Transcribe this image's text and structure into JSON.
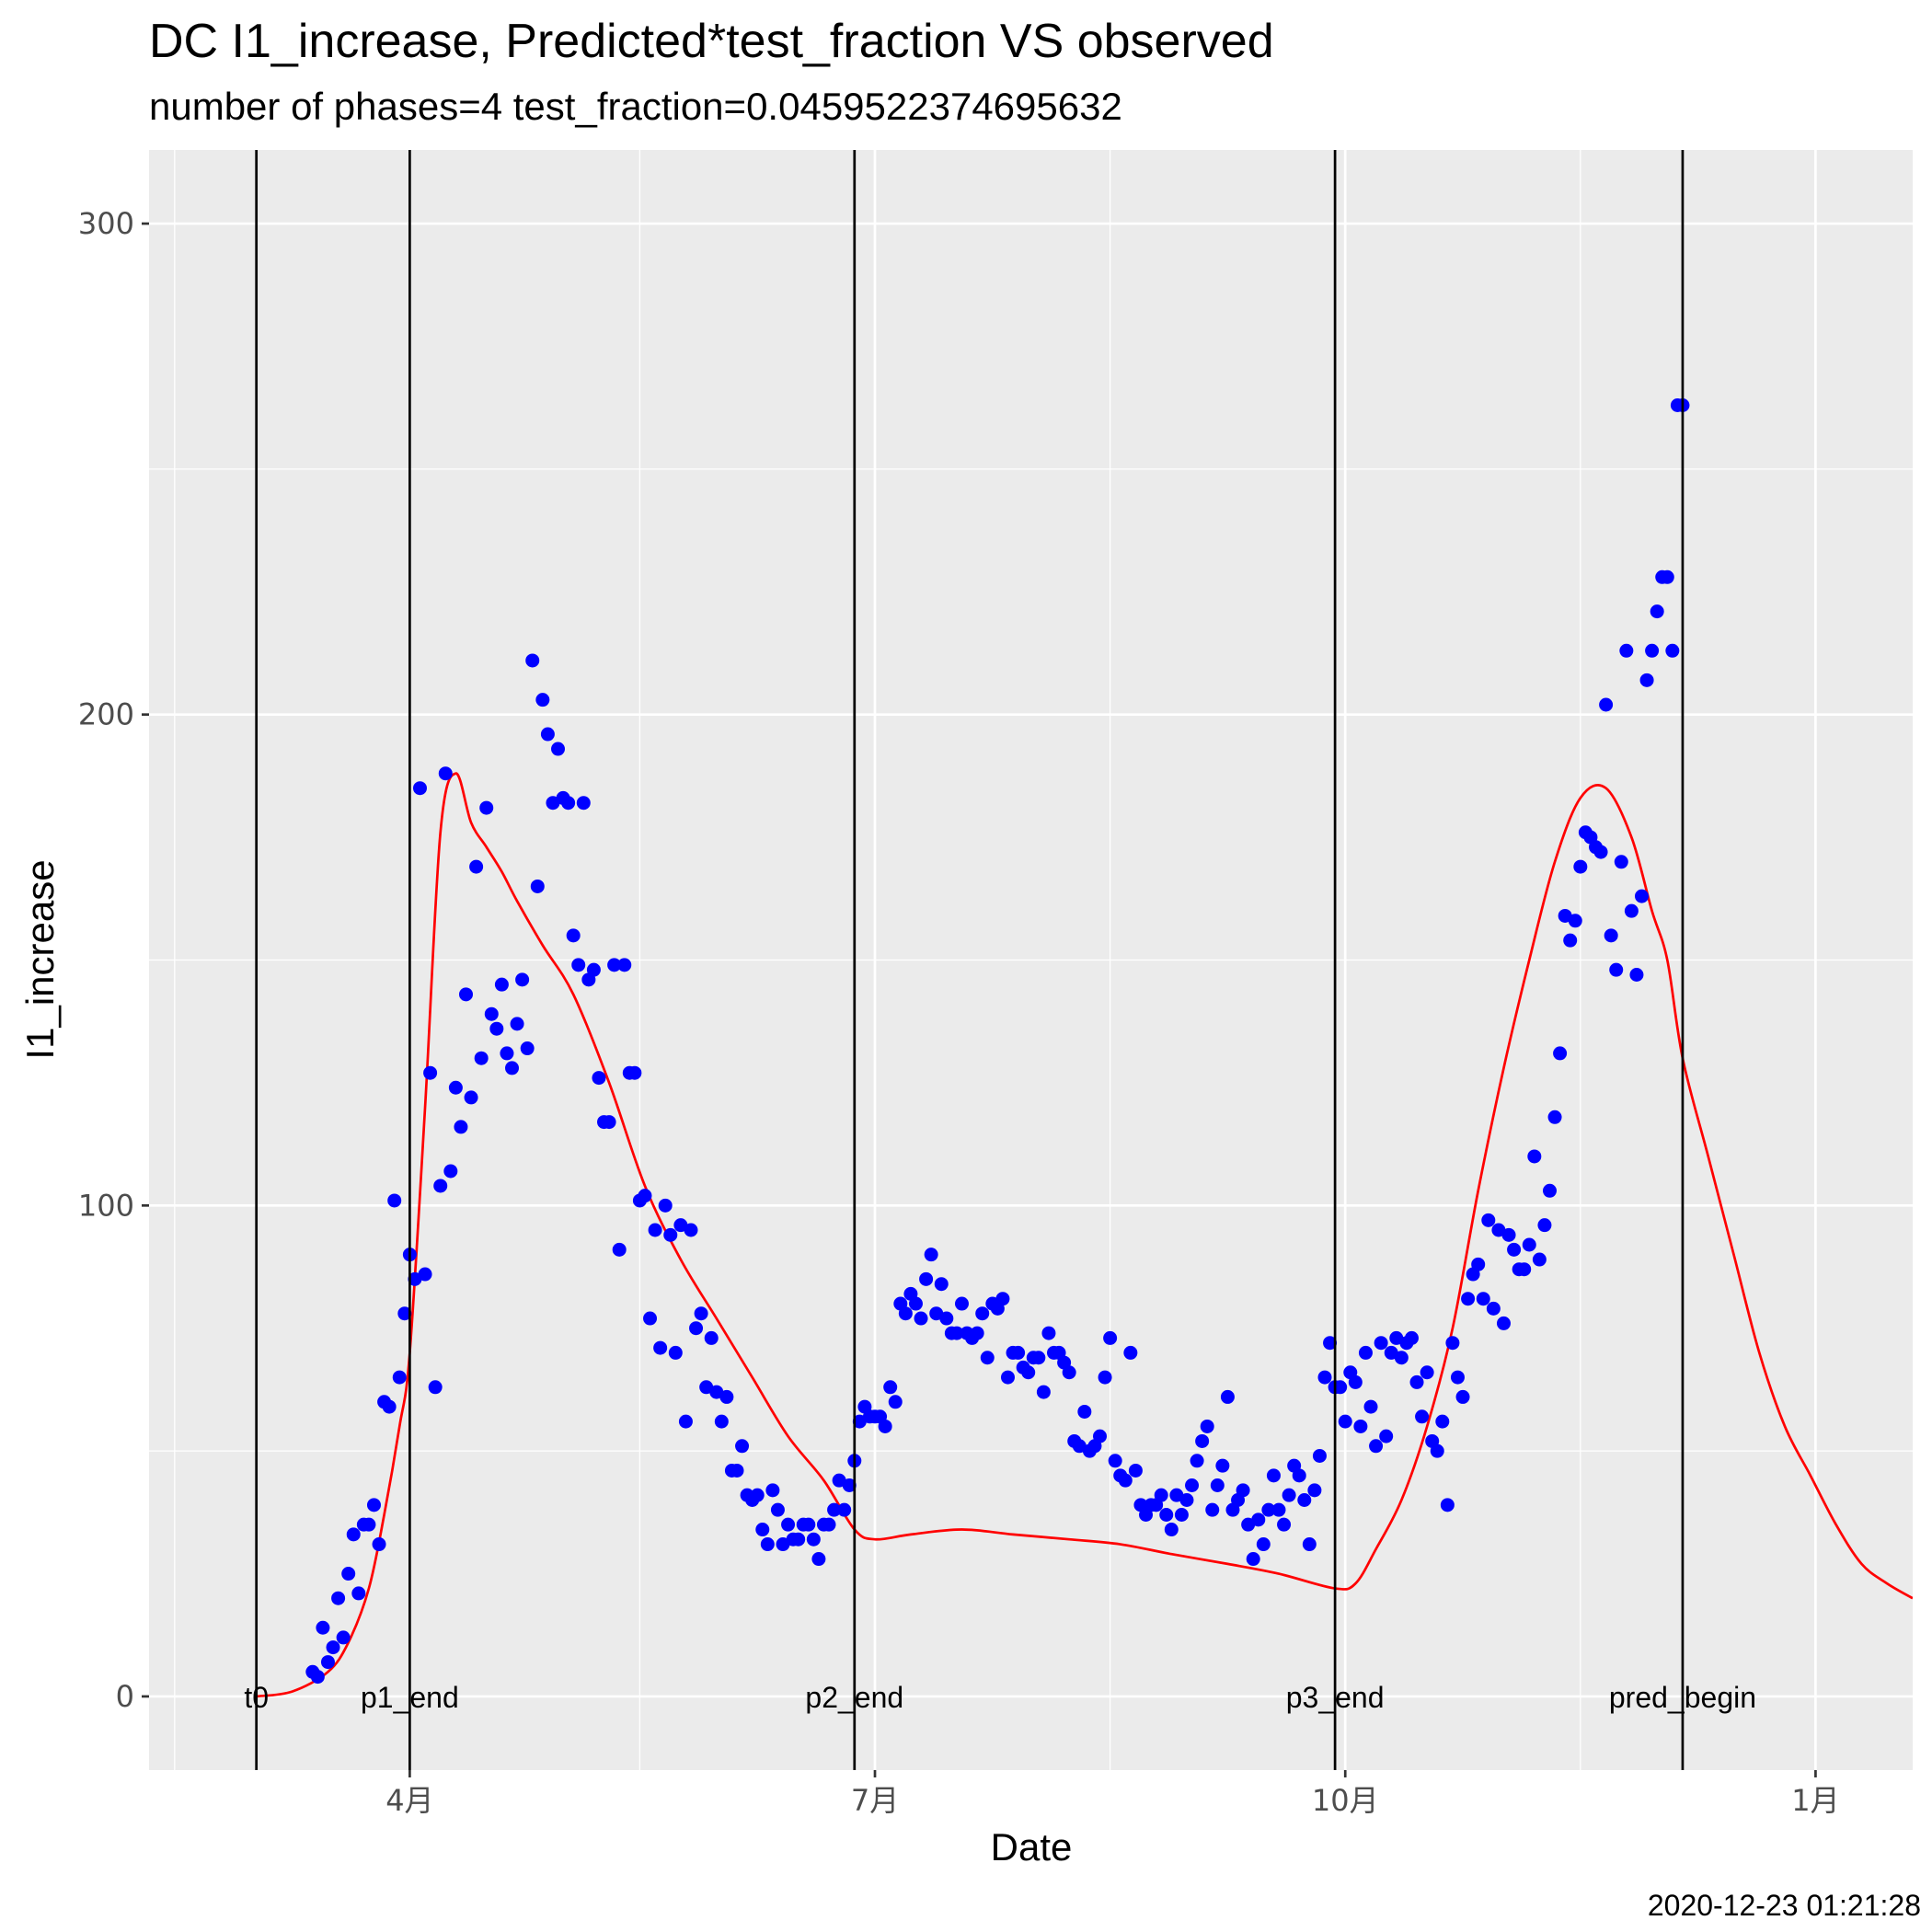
{
  "chart_data": {
    "type": "scatter",
    "title": "DC I1_increase, Predicted*test_fraction VS observed",
    "subtitle": "number of phases=4   test_fraction=0.0459522374695632",
    "xlabel": "Date",
    "ylabel": "I1_increase",
    "caption": "2020-12-23 01:21:28",
    "x_is_date": true,
    "xlim": [
      "2020-02-10",
      "2021-01-20"
    ],
    "ylim": [
      -15,
      315
    ],
    "grid": true,
    "y_ticks": [
      0,
      100,
      200,
      300
    ],
    "y_tick_labels": [
      "0",
      "100",
      "200",
      "300"
    ],
    "x_ticks": [
      "2020-04-01",
      "2020-07-01",
      "2020-10-01",
      "2021-01-01"
    ],
    "x_tick_labels": [
      "4月",
      "7月",
      "10月",
      "1月"
    ],
    "x_minor_ticks": [
      "2020-02-15",
      "2020-05-16",
      "2020-08-16",
      "2020-11-16"
    ],
    "vlines": [
      {
        "date": "2020-03-02",
        "label": "t0"
      },
      {
        "date": "2020-04-01",
        "label": "p1_end"
      },
      {
        "date": "2020-06-27",
        "label": "p2_end"
      },
      {
        "date": "2020-09-29",
        "label": "p3_end"
      },
      {
        "date": "2020-12-06",
        "label": "pred_begin"
      }
    ],
    "colors": {
      "observed": "#0000ff",
      "predicted": "#ff0000",
      "panel": "#ebebeb",
      "grid": "#ffffff",
      "vline": "#000000"
    },
    "series": [
      {
        "kind": "points",
        "x": [
          "2020-03-13",
          "2020-03-14",
          "2020-03-15",
          "2020-03-16",
          "2020-03-17",
          "2020-03-18",
          "2020-03-19",
          "2020-03-20",
          "2020-03-21",
          "2020-03-22",
          "2020-03-23",
          "2020-03-24",
          "2020-03-25",
          "2020-03-26",
          "2020-03-27",
          "2020-03-28",
          "2020-03-29",
          "2020-03-30",
          "2020-03-31",
          "2020-04-01",
          "2020-04-02",
          "2020-04-03",
          "2020-04-04",
          "2020-04-05",
          "2020-04-06",
          "2020-04-07",
          "2020-04-08",
          "2020-04-09",
          "2020-04-10",
          "2020-04-11",
          "2020-04-12",
          "2020-04-13",
          "2020-04-14",
          "2020-04-15",
          "2020-04-16",
          "2020-04-17",
          "2020-04-18",
          "2020-04-19",
          "2020-04-20",
          "2020-04-21",
          "2020-04-22",
          "2020-04-23",
          "2020-04-24",
          "2020-04-25",
          "2020-04-26",
          "2020-04-27",
          "2020-04-28",
          "2020-04-29",
          "2020-04-30",
          "2020-05-01",
          "2020-05-02",
          "2020-05-03",
          "2020-05-04",
          "2020-05-05",
          "2020-05-06",
          "2020-05-07",
          "2020-05-08",
          "2020-05-09",
          "2020-05-10",
          "2020-05-11",
          "2020-05-12",
          "2020-05-13",
          "2020-05-14",
          "2020-05-15",
          "2020-05-16",
          "2020-05-17",
          "2020-05-18",
          "2020-05-19",
          "2020-05-20",
          "2020-05-21",
          "2020-05-22",
          "2020-05-23",
          "2020-05-24",
          "2020-05-25",
          "2020-05-26",
          "2020-05-27",
          "2020-05-28",
          "2020-05-29",
          "2020-05-30",
          "2020-05-31",
          "2020-06-01",
          "2020-06-02",
          "2020-06-03",
          "2020-06-04",
          "2020-06-05",
          "2020-06-06",
          "2020-06-07",
          "2020-06-08",
          "2020-06-09",
          "2020-06-10",
          "2020-06-11",
          "2020-06-12",
          "2020-06-13",
          "2020-06-14",
          "2020-06-15",
          "2020-06-16",
          "2020-06-17",
          "2020-06-18",
          "2020-06-19",
          "2020-06-20",
          "2020-06-21",
          "2020-06-22",
          "2020-06-23",
          "2020-06-24",
          "2020-06-25",
          "2020-06-26",
          "2020-06-27",
          "2020-06-28",
          "2020-06-29",
          "2020-06-30",
          "2020-07-01",
          "2020-07-02",
          "2020-07-03",
          "2020-07-04",
          "2020-07-05",
          "2020-07-06",
          "2020-07-07",
          "2020-07-08",
          "2020-07-09",
          "2020-07-10",
          "2020-07-11",
          "2020-07-12",
          "2020-07-13",
          "2020-07-14",
          "2020-07-15",
          "2020-07-16",
          "2020-07-17",
          "2020-07-18",
          "2020-07-19",
          "2020-07-20",
          "2020-07-21",
          "2020-07-22",
          "2020-07-23",
          "2020-07-24",
          "2020-07-25",
          "2020-07-26",
          "2020-07-27",
          "2020-07-28",
          "2020-07-29",
          "2020-07-30",
          "2020-07-31",
          "2020-08-01",
          "2020-08-02",
          "2020-08-03",
          "2020-08-04",
          "2020-08-05",
          "2020-08-06",
          "2020-08-07",
          "2020-08-08",
          "2020-08-09",
          "2020-08-10",
          "2020-08-11",
          "2020-08-12",
          "2020-08-13",
          "2020-08-14",
          "2020-08-15",
          "2020-08-16",
          "2020-08-17",
          "2020-08-18",
          "2020-08-19",
          "2020-08-20",
          "2020-08-21",
          "2020-08-22",
          "2020-08-23",
          "2020-08-24",
          "2020-08-25",
          "2020-08-26",
          "2020-08-27",
          "2020-08-28",
          "2020-08-29",
          "2020-08-30",
          "2020-08-31",
          "2020-09-01",
          "2020-09-02",
          "2020-09-03",
          "2020-09-04",
          "2020-09-05",
          "2020-09-06",
          "2020-09-07",
          "2020-09-08",
          "2020-09-09",
          "2020-09-10",
          "2020-09-11",
          "2020-09-12",
          "2020-09-13",
          "2020-09-14",
          "2020-09-15",
          "2020-09-16",
          "2020-09-17",
          "2020-09-18",
          "2020-09-19",
          "2020-09-20",
          "2020-09-21",
          "2020-09-22",
          "2020-09-23",
          "2020-09-24",
          "2020-09-25",
          "2020-09-26",
          "2020-09-27",
          "2020-09-28",
          "2020-09-29",
          "2020-09-30",
          "2020-10-01",
          "2020-10-02",
          "2020-10-03",
          "2020-10-04",
          "2020-10-05",
          "2020-10-06",
          "2020-10-07",
          "2020-10-08",
          "2020-10-09",
          "2020-10-10",
          "2020-10-11",
          "2020-10-12",
          "2020-10-13",
          "2020-10-14",
          "2020-10-15",
          "2020-10-16",
          "2020-10-17",
          "2020-10-18",
          "2020-10-19",
          "2020-10-20",
          "2020-10-21",
          "2020-10-22",
          "2020-10-23",
          "2020-10-24",
          "2020-10-25",
          "2020-10-26",
          "2020-10-27",
          "2020-10-28",
          "2020-10-29",
          "2020-10-30",
          "2020-10-31",
          "2020-11-01",
          "2020-11-02",
          "2020-11-03",
          "2020-11-04",
          "2020-11-05",
          "2020-11-06",
          "2020-11-07",
          "2020-11-08",
          "2020-11-09",
          "2020-11-10",
          "2020-11-11",
          "2020-11-12",
          "2020-11-13",
          "2020-11-14",
          "2020-11-15",
          "2020-11-16",
          "2020-11-17",
          "2020-11-18",
          "2020-11-19",
          "2020-11-20",
          "2020-11-21",
          "2020-11-22",
          "2020-11-23",
          "2020-11-24",
          "2020-11-25",
          "2020-11-26",
          "2020-11-27",
          "2020-11-28",
          "2020-11-29",
          "2020-11-30",
          "2020-12-01",
          "2020-12-02",
          "2020-12-03",
          "2020-12-04",
          "2020-12-05",
          "2020-12-06"
        ],
        "y": [
          5,
          4,
          14,
          7,
          10,
          20,
          12,
          25,
          33,
          21,
          35,
          35,
          39,
          31,
          60,
          59,
          101,
          65,
          78,
          90,
          85,
          185,
          86,
          127,
          63,
          104,
          188,
          107,
          124,
          116,
          143,
          122,
          169,
          130,
          181,
          139,
          136,
          145,
          131,
          128,
          137,
          146,
          132,
          211,
          165,
          203,
          196,
          182,
          193,
          183,
          182,
          155,
          149,
          182,
          146,
          148,
          126,
          117,
          117,
          149,
          91,
          149,
          127,
          127,
          101,
          102,
          77,
          95,
          71,
          100,
          94,
          70,
          96,
          56,
          95,
          75,
          78,
          63,
          73,
          62,
          56,
          61,
          46,
          46,
          51,
          41,
          40,
          41,
          34,
          31,
          42,
          38,
          31,
          35,
          32,
          32,
          35,
          35,
          32,
          28,
          35,
          35,
          38,
          44,
          38,
          43,
          48,
          56,
          59,
          57,
          57,
          57,
          55,
          63,
          60,
          80,
          78,
          82,
          80,
          77,
          85,
          90,
          78,
          84,
          77,
          74,
          74,
          80,
          74,
          73,
          74,
          78,
          69,
          80,
          79,
          81,
          65,
          70,
          70,
          67,
          66,
          69,
          69,
          62,
          74,
          70,
          70,
          68,
          66,
          52,
          51,
          58,
          50,
          51,
          53,
          65,
          73,
          48,
          45,
          44,
          70,
          46,
          39,
          37,
          39,
          39,
          41,
          37,
          34,
          41,
          37,
          40,
          43,
          48,
          52,
          55,
          38,
          43,
          47,
          61,
          38,
          40,
          42,
          35,
          28,
          36,
          31,
          38,
          45,
          38,
          35,
          41,
          47,
          45,
          40,
          31,
          42,
          49,
          65,
          72,
          63,
          63,
          56,
          66,
          64,
          55,
          70,
          59,
          51,
          72,
          53,
          70,
          73,
          69,
          72,
          73,
          64,
          57,
          66,
          52,
          50,
          56,
          39,
          72,
          65,
          61,
          81,
          86,
          88,
          81,
          97,
          79,
          95,
          76,
          94,
          91,
          87,
          87,
          92,
          110,
          89,
          96,
          103,
          118,
          131,
          159,
          154,
          158,
          169,
          176,
          175,
          173,
          172,
          202,
          155,
          148,
          170,
          213,
          160,
          147,
          163,
          207,
          213,
          221,
          228,
          228,
          213,
          263,
          263
        ]
      },
      {
        "kind": "line",
        "x": [
          "2020-03-02",
          "2020-03-09",
          "2020-03-16",
          "2020-03-20",
          "2020-03-24",
          "2020-03-27",
          "2020-03-30",
          "2020-04-01",
          "2020-04-04",
          "2020-04-07",
          "2020-04-10",
          "2020-04-13",
          "2020-04-16",
          "2020-04-19",
          "2020-04-22",
          "2020-04-27",
          "2020-05-03",
          "2020-05-10",
          "2020-05-17",
          "2020-05-24",
          "2020-05-31",
          "2020-06-07",
          "2020-06-14",
          "2020-06-21",
          "2020-06-27",
          "2020-07-01",
          "2020-07-08",
          "2020-07-18",
          "2020-07-28",
          "2020-08-08",
          "2020-08-18",
          "2020-08-28",
          "2020-09-08",
          "2020-09-18",
          "2020-09-29",
          "2020-10-03",
          "2020-10-07",
          "2020-10-12",
          "2020-10-17",
          "2020-10-22",
          "2020-10-27",
          "2020-11-01",
          "2020-11-06",
          "2020-11-11",
          "2020-11-16",
          "2020-11-21",
          "2020-11-26",
          "2020-11-30",
          "2020-12-03",
          "2020-12-06",
          "2020-12-11",
          "2020-12-16",
          "2020-12-21",
          "2020-12-26",
          "2020-12-31",
          "2021-01-05",
          "2021-01-10",
          "2021-01-15",
          "2021-01-20"
        ],
        "y": [
          0,
          1,
          5,
          11,
          22,
          37,
          55,
          70,
          120,
          176,
          188,
          178,
          173,
          168,
          162,
          153,
          143,
          125,
          104,
          89,
          77,
          65,
          53,
          44,
          34,
          32,
          33,
          34,
          33,
          32,
          31,
          29,
          27,
          25,
          22,
          23,
          30,
          40,
          55,
          75,
          103,
          128,
          150,
          170,
          183,
          185,
          175,
          160,
          150,
          130,
          110,
          90,
          70,
          55,
          45,
          35,
          27,
          23,
          20
        ]
      }
    ]
  }
}
